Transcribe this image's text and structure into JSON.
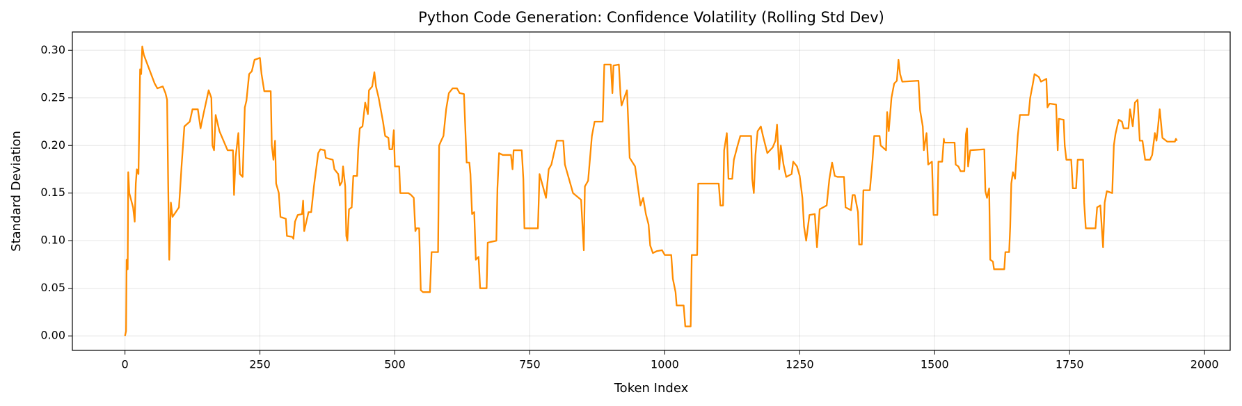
{
  "chart_data": {
    "type": "line",
    "title": "Python Code Generation: Confidence Volatility (Rolling Std Dev)",
    "xlabel": "Token Index",
    "ylabel": "Standard Deviation",
    "xlim": [
      -97.5,
      2047.5
    ],
    "ylim": [
      -0.0152,
      0.3192
    ],
    "xticks": [
      0,
      250,
      500,
      750,
      1000,
      1250,
      1500,
      1750,
      2000
    ],
    "yticks": [
      {
        "value": 0,
        "label": "0.00"
      },
      {
        "value": 0.05,
        "label": "0.05"
      },
      {
        "value": 0.1,
        "label": "0.10"
      },
      {
        "value": 0.15,
        "label": "0.15"
      },
      {
        "value": 0.2,
        "label": "0.20"
      },
      {
        "value": 0.25,
        "label": "0.25"
      },
      {
        "value": 0.3,
        "label": "0.30"
      }
    ],
    "grid": true,
    "x": [
      0,
      2,
      3,
      5,
      6,
      8,
      15,
      18,
      20,
      22,
      25,
      28,
      30,
      32,
      35,
      45,
      55,
      60,
      70,
      75,
      78,
      80,
      82,
      85,
      88,
      100,
      105,
      110,
      120,
      125,
      135,
      140,
      145,
      155,
      160,
      162,
      165,
      168,
      175,
      190,
      200,
      202,
      205,
      210,
      213,
      218,
      222,
      225,
      230,
      235,
      240,
      250,
      253,
      258,
      270,
      272,
      275,
      278,
      280,
      285,
      288,
      298,
      300,
      310,
      312,
      315,
      320,
      328,
      330,
      332,
      340,
      345,
      350,
      358,
      362,
      370,
      372,
      385,
      388,
      395,
      398,
      402,
      404,
      408,
      410,
      412,
      415,
      420,
      423,
      430,
      432,
      435,
      440,
      445,
      450,
      452,
      458,
      462,
      465,
      470,
      478,
      482,
      488,
      490,
      495,
      498,
      500,
      508,
      510,
      525,
      530,
      535,
      538,
      540,
      545,
      548,
      552,
      565,
      568,
      580,
      582,
      585,
      590,
      595,
      600,
      607,
      615,
      620,
      628,
      630,
      633,
      638,
      640,
      643,
      647,
      650,
      655,
      658,
      670,
      672,
      688,
      690,
      693,
      700,
      715,
      718,
      720,
      735,
      738,
      740,
      765,
      768,
      780,
      785,
      790,
      800,
      812,
      815,
      830,
      845,
      850,
      852,
      858,
      865,
      870,
      885,
      888,
      900,
      903,
      905,
      915,
      918,
      920,
      925,
      930,
      935,
      945,
      955,
      960,
      965,
      970,
      973,
      978,
      985,
      995,
      1000,
      1012,
      1015,
      1020,
      1022,
      1035,
      1038,
      1048,
      1050,
      1060,
      1062,
      1100,
      1103,
      1108,
      1110,
      1115,
      1118,
      1125,
      1128,
      1135,
      1140,
      1160,
      1162,
      1165,
      1168,
      1172,
      1178,
      1182,
      1190,
      1200,
      1205,
      1208,
      1212,
      1215,
      1220,
      1225,
      1235,
      1238,
      1245,
      1250,
      1255,
      1258,
      1262,
      1268,
      1278,
      1282,
      1287,
      1300,
      1305,
      1310,
      1315,
      1320,
      1332,
      1335,
      1345,
      1348,
      1352,
      1358,
      1360,
      1365,
      1368,
      1380,
      1385,
      1388,
      1398,
      1400,
      1410,
      1412,
      1415,
      1420,
      1425,
      1430,
      1433,
      1436,
      1440,
      1470,
      1473,
      1478,
      1480,
      1485,
      1488,
      1495,
      1498,
      1505,
      1507,
      1514,
      1517,
      1518,
      1537,
      1539,
      1544,
      1548,
      1555,
      1558,
      1560,
      1562,
      1566,
      1592,
      1594,
      1597,
      1601,
      1603,
      1608,
      1610,
      1629,
      1631,
      1638,
      1640,
      1642,
      1645,
      1649,
      1654,
      1658,
      1674,
      1677,
      1682,
      1685,
      1693,
      1697,
      1707,
      1709,
      1713,
      1725,
      1728,
      1730,
      1739,
      1741,
      1744,
      1753,
      1756,
      1762,
      1765,
      1775,
      1777,
      1780,
      1798,
      1801,
      1807,
      1812,
      1815,
      1819,
      1829,
      1832,
      1835,
      1841,
      1847,
      1850,
      1859,
      1862,
      1867,
      1871,
      1876,
      1880,
      1885,
      1890,
      1899,
      1903,
      1908,
      1911,
      1913,
      1917,
      1922,
      1931,
      1945,
      1947,
      1949
    ],
    "series": [
      {
        "name": "Rolling Std Dev",
        "color": "#ff8c00",
        "values": [
          0.0,
          0.005,
          0.08,
          0.07,
          0.172,
          0.15,
          0.135,
          0.12,
          0.16,
          0.175,
          0.17,
          0.28,
          0.275,
          0.304,
          0.295,
          0.28,
          0.265,
          0.26,
          0.262,
          0.255,
          0.248,
          0.16,
          0.08,
          0.14,
          0.125,
          0.135,
          0.18,
          0.22,
          0.225,
          0.238,
          0.238,
          0.218,
          0.232,
          0.258,
          0.25,
          0.2,
          0.195,
          0.232,
          0.215,
          0.195,
          0.195,
          0.148,
          0.188,
          0.213,
          0.17,
          0.167,
          0.24,
          0.247,
          0.275,
          0.278,
          0.29,
          0.292,
          0.275,
          0.257,
          0.257,
          0.2,
          0.185,
          0.205,
          0.16,
          0.15,
          0.125,
          0.123,
          0.105,
          0.104,
          0.102,
          0.12,
          0.127,
          0.128,
          0.142,
          0.11,
          0.13,
          0.13,
          0.157,
          0.192,
          0.196,
          0.195,
          0.187,
          0.185,
          0.175,
          0.17,
          0.158,
          0.162,
          0.178,
          0.157,
          0.105,
          0.1,
          0.133,
          0.135,
          0.168,
          0.168,
          0.195,
          0.218,
          0.22,
          0.245,
          0.233,
          0.258,
          0.262,
          0.277,
          0.262,
          0.25,
          0.225,
          0.21,
          0.208,
          0.196,
          0.196,
          0.216,
          0.178,
          0.178,
          0.15,
          0.15,
          0.148,
          0.145,
          0.11,
          0.113,
          0.113,
          0.048,
          0.046,
          0.046,
          0.088,
          0.088,
          0.2,
          0.204,
          0.21,
          0.238,
          0.255,
          0.26,
          0.26,
          0.255,
          0.254,
          0.225,
          0.182,
          0.182,
          0.17,
          0.128,
          0.13,
          0.08,
          0.083,
          0.05,
          0.05,
          0.098,
          0.1,
          0.155,
          0.192,
          0.19,
          0.19,
          0.175,
          0.195,
          0.195,
          0.165,
          0.113,
          0.113,
          0.17,
          0.145,
          0.175,
          0.18,
          0.205,
          0.205,
          0.18,
          0.15,
          0.143,
          0.09,
          0.157,
          0.163,
          0.21,
          0.225,
          0.225,
          0.285,
          0.285,
          0.255,
          0.284,
          0.285,
          0.253,
          0.242,
          0.25,
          0.258,
          0.187,
          0.178,
          0.137,
          0.145,
          0.128,
          0.117,
          0.095,
          0.087,
          0.089,
          0.09,
          0.085,
          0.085,
          0.06,
          0.046,
          0.032,
          0.032,
          0.01,
          0.01,
          0.085,
          0.085,
          0.16,
          0.16,
          0.137,
          0.137,
          0.195,
          0.213,
          0.165,
          0.165,
          0.185,
          0.2,
          0.21,
          0.21,
          0.165,
          0.15,
          0.19,
          0.215,
          0.22,
          0.21,
          0.192,
          0.198,
          0.205,
          0.222,
          0.175,
          0.2,
          0.18,
          0.167,
          0.17,
          0.183,
          0.178,
          0.168,
          0.145,
          0.115,
          0.1,
          0.127,
          0.128,
          0.093,
          0.133,
          0.137,
          0.165,
          0.182,
          0.168,
          0.167,
          0.167,
          0.135,
          0.132,
          0.148,
          0.148,
          0.13,
          0.096,
          0.096,
          0.153,
          0.153,
          0.185,
          0.21,
          0.21,
          0.2,
          0.195,
          0.235,
          0.215,
          0.25,
          0.265,
          0.268,
          0.29,
          0.275,
          0.267,
          0.268,
          0.237,
          0.22,
          0.195,
          0.213,
          0.18,
          0.183,
          0.127,
          0.127,
          0.183,
          0.183,
          0.207,
          0.203,
          0.203,
          0.18,
          0.178,
          0.173,
          0.173,
          0.212,
          0.218,
          0.178,
          0.195,
          0.196,
          0.152,
          0.145,
          0.155,
          0.08,
          0.078,
          0.07,
          0.07,
          0.088,
          0.088,
          0.115,
          0.16,
          0.172,
          0.165,
          0.21,
          0.232,
          0.232,
          0.25,
          0.265,
          0.275,
          0.272,
          0.267,
          0.27,
          0.24,
          0.244,
          0.243,
          0.195,
          0.228,
          0.227,
          0.2,
          0.185,
          0.185,
          0.155,
          0.155,
          0.185,
          0.185,
          0.14,
          0.113,
          0.113,
          0.135,
          0.137,
          0.093,
          0.14,
          0.152,
          0.15,
          0.2,
          0.212,
          0.227,
          0.225,
          0.218,
          0.218,
          0.238,
          0.22,
          0.245,
          0.248,
          0.205,
          0.205,
          0.185,
          0.185,
          0.19,
          0.213,
          0.205,
          0.215,
          0.238,
          0.208,
          0.204,
          0.204,
          0.207,
          0.205
        ]
      }
    ]
  }
}
